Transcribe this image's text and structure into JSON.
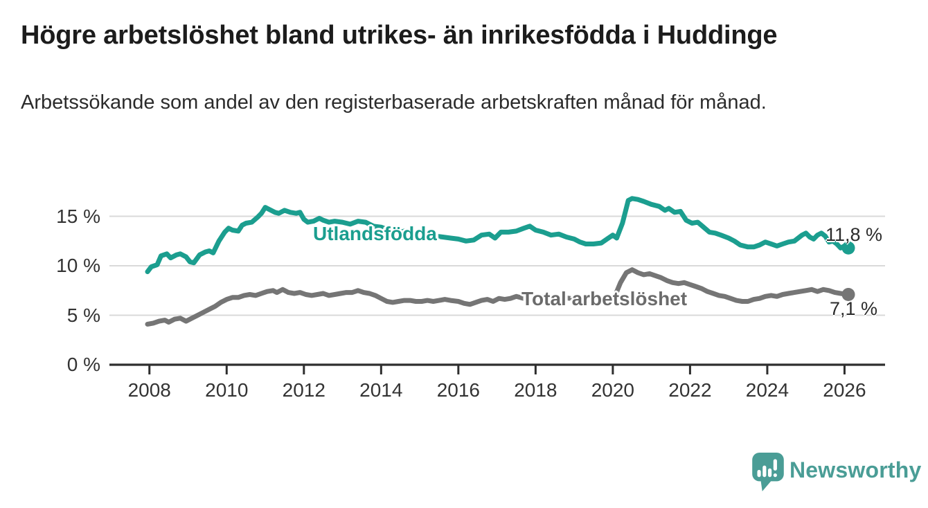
{
  "header": {
    "title": "Högre arbetslöshet bland utrikes- än inrikesfödda i Huddinge",
    "subtitle": "Arbetssökande som andel av den registerbaserade arbetskraften månad för månad."
  },
  "footer": {
    "brand": "Newsworthy",
    "brand_color": "#4a9d96",
    "logo_icon": "speech-bubble-bar-chart-icon"
  },
  "chart_data": {
    "type": "line",
    "title": "Högre arbetslöshet bland utrikes- än inrikesfödda i Huddinge",
    "xlabel": "",
    "ylabel": "",
    "grid": true,
    "legend_position": "inline-labels",
    "x_axis": {
      "range": [
        2007.0,
        2027.05
      ],
      "ticks": [
        2008,
        2010,
        2012,
        2014,
        2016,
        2018,
        2020,
        2022,
        2024,
        2026
      ],
      "tick_labels": [
        "2008",
        "2010",
        "2012",
        "2014",
        "2016",
        "2018",
        "2020",
        "2022",
        "2024",
        "2026"
      ]
    },
    "y_axis": {
      "range": [
        0,
        17.6
      ],
      "ticks": [
        0,
        5,
        10,
        15
      ],
      "tick_labels": [
        "0 %",
        "5 %",
        "10 %",
        "15 %"
      ]
    },
    "colors": {
      "grid": "#d9d9d9",
      "axis": "#2e2e2e",
      "tick_text": "#333333"
    },
    "series": [
      {
        "name": "Utlandsfödda",
        "color": "#1b9e8f",
        "label_color": "#1b9e8f",
        "end_value": 11.8,
        "end_label": "11,8 %",
        "points": [
          [
            2007.95,
            9.4
          ],
          [
            2008.05,
            9.9
          ],
          [
            2008.2,
            10.1
          ],
          [
            2008.3,
            11.0
          ],
          [
            2008.45,
            11.2
          ],
          [
            2008.55,
            10.8
          ],
          [
            2008.7,
            11.1
          ],
          [
            2008.8,
            11.2
          ],
          [
            2008.95,
            10.9
          ],
          [
            2009.05,
            10.4
          ],
          [
            2009.15,
            10.3
          ],
          [
            2009.3,
            11.1
          ],
          [
            2009.45,
            11.4
          ],
          [
            2009.55,
            11.5
          ],
          [
            2009.65,
            11.3
          ],
          [
            2009.8,
            12.5
          ],
          [
            2009.95,
            13.4
          ],
          [
            2010.05,
            13.8
          ],
          [
            2010.15,
            13.6
          ],
          [
            2010.3,
            13.5
          ],
          [
            2010.4,
            14.1
          ],
          [
            2010.5,
            14.3
          ],
          [
            2010.65,
            14.4
          ],
          [
            2010.8,
            14.9
          ],
          [
            2010.9,
            15.3
          ],
          [
            2011.0,
            15.9
          ],
          [
            2011.1,
            15.7
          ],
          [
            2011.25,
            15.4
          ],
          [
            2011.35,
            15.3
          ],
          [
            2011.5,
            15.6
          ],
          [
            2011.65,
            15.4
          ],
          [
            2011.8,
            15.3
          ],
          [
            2011.9,
            15.4
          ],
          [
            2012.0,
            14.7
          ],
          [
            2012.1,
            14.4
          ],
          [
            2012.25,
            14.5
          ],
          [
            2012.4,
            14.8
          ],
          [
            2012.5,
            14.6
          ],
          [
            2012.65,
            14.4
          ],
          [
            2012.8,
            14.5
          ],
          [
            2013.0,
            14.4
          ],
          [
            2013.2,
            14.2
          ],
          [
            2013.4,
            14.5
          ],
          [
            2013.6,
            14.4
          ],
          [
            2013.8,
            14.0
          ],
          [
            2014.0,
            13.9
          ],
          [
            2014.2,
            13.6
          ],
          [
            2014.4,
            13.3
          ],
          [
            2014.6,
            13.5
          ],
          [
            2014.8,
            13.4
          ],
          [
            2015.0,
            13.3
          ],
          [
            2015.2,
            13.2
          ],
          [
            2015.4,
            13.0
          ],
          [
            2015.6,
            12.9
          ],
          [
            2015.8,
            12.8
          ],
          [
            2016.0,
            12.7
          ],
          [
            2016.2,
            12.5
          ],
          [
            2016.4,
            12.6
          ],
          [
            2016.6,
            13.1
          ],
          [
            2016.8,
            13.2
          ],
          [
            2016.95,
            12.8
          ],
          [
            2017.1,
            13.4
          ],
          [
            2017.3,
            13.4
          ],
          [
            2017.5,
            13.5
          ],
          [
            2017.7,
            13.8
          ],
          [
            2017.85,
            14.0
          ],
          [
            2018.0,
            13.6
          ],
          [
            2018.2,
            13.4
          ],
          [
            2018.4,
            13.1
          ],
          [
            2018.6,
            13.2
          ],
          [
            2018.8,
            12.9
          ],
          [
            2019.0,
            12.7
          ],
          [
            2019.15,
            12.4
          ],
          [
            2019.3,
            12.2
          ],
          [
            2019.5,
            12.2
          ],
          [
            2019.7,
            12.3
          ],
          [
            2019.85,
            12.7
          ],
          [
            2020.0,
            13.1
          ],
          [
            2020.1,
            12.8
          ],
          [
            2020.25,
            14.3
          ],
          [
            2020.4,
            16.6
          ],
          [
            2020.5,
            16.8
          ],
          [
            2020.65,
            16.7
          ],
          [
            2020.8,
            16.5
          ],
          [
            2021.0,
            16.2
          ],
          [
            2021.2,
            16.0
          ],
          [
            2021.35,
            15.6
          ],
          [
            2021.45,
            15.8
          ],
          [
            2021.6,
            15.4
          ],
          [
            2021.75,
            15.5
          ],
          [
            2021.9,
            14.6
          ],
          [
            2022.05,
            14.3
          ],
          [
            2022.2,
            14.4
          ],
          [
            2022.35,
            13.9
          ],
          [
            2022.5,
            13.4
          ],
          [
            2022.65,
            13.3
          ],
          [
            2022.8,
            13.1
          ],
          [
            2023.0,
            12.8
          ],
          [
            2023.15,
            12.5
          ],
          [
            2023.3,
            12.1
          ],
          [
            2023.5,
            11.9
          ],
          [
            2023.65,
            11.9
          ],
          [
            2023.8,
            12.1
          ],
          [
            2023.95,
            12.4
          ],
          [
            2024.1,
            12.2
          ],
          [
            2024.25,
            12.0
          ],
          [
            2024.4,
            12.2
          ],
          [
            2024.55,
            12.4
          ],
          [
            2024.7,
            12.5
          ],
          [
            2024.9,
            13.1
          ],
          [
            2025.0,
            13.3
          ],
          [
            2025.1,
            12.9
          ],
          [
            2025.2,
            12.7
          ],
          [
            2025.3,
            13.1
          ],
          [
            2025.4,
            13.3
          ],
          [
            2025.5,
            13.0
          ],
          [
            2025.6,
            12.4
          ],
          [
            2025.7,
            12.5
          ],
          [
            2025.8,
            12.2
          ],
          [
            2025.9,
            11.8
          ],
          [
            2026.0,
            12.0
          ],
          [
            2026.1,
            11.8
          ]
        ]
      },
      {
        "name": "Total arbetslöshet",
        "color": "#757575",
        "label_color": "#6b6b6b",
        "end_value": 7.1,
        "end_label": "7,1 %",
        "points": [
          [
            2007.95,
            4.1
          ],
          [
            2008.1,
            4.2
          ],
          [
            2008.25,
            4.4
          ],
          [
            2008.4,
            4.5
          ],
          [
            2008.5,
            4.3
          ],
          [
            2008.65,
            4.6
          ],
          [
            2008.8,
            4.7
          ],
          [
            2008.95,
            4.4
          ],
          [
            2009.1,
            4.7
          ],
          [
            2009.25,
            5.0
          ],
          [
            2009.4,
            5.3
          ],
          [
            2009.55,
            5.6
          ],
          [
            2009.7,
            5.9
          ],
          [
            2009.85,
            6.3
          ],
          [
            2010.0,
            6.6
          ],
          [
            2010.15,
            6.8
          ],
          [
            2010.3,
            6.8
          ],
          [
            2010.45,
            7.0
          ],
          [
            2010.6,
            7.1
          ],
          [
            2010.75,
            7.0
          ],
          [
            2010.9,
            7.2
          ],
          [
            2011.05,
            7.4
          ],
          [
            2011.2,
            7.5
          ],
          [
            2011.3,
            7.3
          ],
          [
            2011.45,
            7.6
          ],
          [
            2011.6,
            7.3
          ],
          [
            2011.75,
            7.2
          ],
          [
            2011.9,
            7.3
          ],
          [
            2012.05,
            7.1
          ],
          [
            2012.2,
            7.0
          ],
          [
            2012.35,
            7.1
          ],
          [
            2012.5,
            7.2
          ],
          [
            2012.65,
            7.0
          ],
          [
            2012.8,
            7.1
          ],
          [
            2012.95,
            7.2
          ],
          [
            2013.1,
            7.3
          ],
          [
            2013.25,
            7.3
          ],
          [
            2013.4,
            7.5
          ],
          [
            2013.55,
            7.3
          ],
          [
            2013.7,
            7.2
          ],
          [
            2013.85,
            7.0
          ],
          [
            2014.0,
            6.7
          ],
          [
            2014.15,
            6.4
          ],
          [
            2014.3,
            6.3
          ],
          [
            2014.45,
            6.4
          ],
          [
            2014.6,
            6.5
          ],
          [
            2014.75,
            6.5
          ],
          [
            2014.9,
            6.4
          ],
          [
            2015.05,
            6.4
          ],
          [
            2015.2,
            6.5
          ],
          [
            2015.35,
            6.4
          ],
          [
            2015.5,
            6.5
          ],
          [
            2015.65,
            6.6
          ],
          [
            2015.8,
            6.5
          ],
          [
            2016.0,
            6.4
          ],
          [
            2016.15,
            6.2
          ],
          [
            2016.3,
            6.1
          ],
          [
            2016.45,
            6.3
          ],
          [
            2016.6,
            6.5
          ],
          [
            2016.75,
            6.6
          ],
          [
            2016.9,
            6.4
          ],
          [
            2017.05,
            6.7
          ],
          [
            2017.2,
            6.6
          ],
          [
            2017.35,
            6.7
          ],
          [
            2017.5,
            6.9
          ],
          [
            2017.7,
            6.7
          ],
          [
            2017.9,
            6.8
          ],
          [
            2018.1,
            6.9
          ],
          [
            2018.3,
            6.8
          ],
          [
            2018.5,
            6.9
          ],
          [
            2018.7,
            6.8
          ],
          [
            2018.9,
            6.7
          ],
          [
            2019.1,
            6.5
          ],
          [
            2019.3,
            6.5
          ],
          [
            2019.5,
            6.4
          ],
          [
            2019.7,
            6.5
          ],
          [
            2019.9,
            6.7
          ],
          [
            2020.05,
            6.9
          ],
          [
            2020.2,
            8.3
          ],
          [
            2020.35,
            9.3
          ],
          [
            2020.5,
            9.6
          ],
          [
            2020.65,
            9.3
          ],
          [
            2020.8,
            9.1
          ],
          [
            2020.95,
            9.2
          ],
          [
            2021.1,
            9.0
          ],
          [
            2021.25,
            8.8
          ],
          [
            2021.4,
            8.5
          ],
          [
            2021.55,
            8.3
          ],
          [
            2021.7,
            8.2
          ],
          [
            2021.85,
            8.3
          ],
          [
            2022.0,
            8.1
          ],
          [
            2022.15,
            7.9
          ],
          [
            2022.3,
            7.7
          ],
          [
            2022.45,
            7.4
          ],
          [
            2022.6,
            7.2
          ],
          [
            2022.75,
            7.0
          ],
          [
            2022.9,
            6.9
          ],
          [
            2023.05,
            6.7
          ],
          [
            2023.2,
            6.5
          ],
          [
            2023.35,
            6.4
          ],
          [
            2023.5,
            6.4
          ],
          [
            2023.65,
            6.6
          ],
          [
            2023.8,
            6.7
          ],
          [
            2023.95,
            6.9
          ],
          [
            2024.1,
            7.0
          ],
          [
            2024.25,
            6.9
          ],
          [
            2024.4,
            7.1
          ],
          [
            2024.55,
            7.2
          ],
          [
            2024.7,
            7.3
          ],
          [
            2024.85,
            7.4
          ],
          [
            2025.0,
            7.5
          ],
          [
            2025.15,
            7.6
          ],
          [
            2025.3,
            7.4
          ],
          [
            2025.45,
            7.6
          ],
          [
            2025.6,
            7.5
          ],
          [
            2025.75,
            7.3
          ],
          [
            2025.9,
            7.2
          ],
          [
            2026.1,
            7.1
          ]
        ]
      }
    ]
  }
}
